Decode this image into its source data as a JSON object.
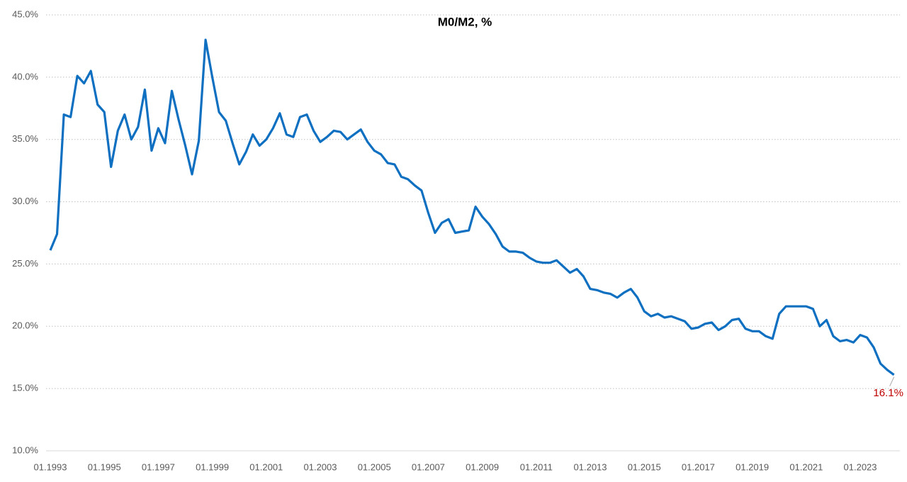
{
  "chart_data": {
    "type": "line",
    "title": "M0/M2, %",
    "x": [
      "01.1993",
      "04.1993",
      "07.1993",
      "10.1993",
      "01.1994",
      "04.1994",
      "07.1994",
      "10.1994",
      "01.1995",
      "04.1995",
      "07.1995",
      "10.1995",
      "01.1996",
      "04.1996",
      "07.1996",
      "10.1996",
      "01.1997",
      "04.1997",
      "07.1997",
      "10.1997",
      "01.1998",
      "04.1998",
      "07.1998",
      "10.1998",
      "01.1999",
      "04.1999",
      "07.1999",
      "10.1999",
      "01.2000",
      "04.2000",
      "07.2000",
      "10.2000",
      "01.2001",
      "04.2001",
      "07.2001",
      "10.2001",
      "01.2002",
      "04.2002",
      "07.2002",
      "10.2002",
      "01.2003",
      "04.2003",
      "07.2003",
      "10.2003",
      "01.2004",
      "04.2004",
      "07.2004",
      "10.2004",
      "01.2005",
      "04.2005",
      "07.2005",
      "10.2005",
      "01.2006",
      "04.2006",
      "07.2006",
      "10.2006",
      "01.2007",
      "04.2007",
      "07.2007",
      "10.2007",
      "01.2008",
      "04.2008",
      "07.2008",
      "10.2008",
      "01.2009",
      "04.2009",
      "07.2009",
      "10.2009",
      "01.2010",
      "04.2010",
      "07.2010",
      "10.2010",
      "01.2011",
      "04.2011",
      "07.2011",
      "10.2011",
      "01.2012",
      "04.2012",
      "07.2012",
      "10.2012",
      "01.2013",
      "04.2013",
      "07.2013",
      "10.2013",
      "01.2014",
      "04.2014",
      "07.2014",
      "10.2014",
      "01.2015",
      "04.2015",
      "07.2015",
      "10.2015",
      "01.2016",
      "04.2016",
      "07.2016",
      "10.2016",
      "01.2017",
      "04.2017",
      "07.2017",
      "10.2017",
      "01.2018",
      "04.2018",
      "07.2018",
      "10.2018",
      "01.2019",
      "04.2019",
      "07.2019",
      "10.2019",
      "01.2020",
      "04.2020",
      "07.2020",
      "10.2020",
      "01.2021",
      "04.2021",
      "07.2021",
      "10.2021",
      "01.2022",
      "04.2022",
      "07.2022",
      "10.2022",
      "01.2023",
      "04.2023",
      "07.2023",
      "10.2023",
      "01.2024",
      "04.2024"
    ],
    "series": [
      {
        "color": "#0f6fc0",
        "values": [
          26.1,
          27.4,
          37.0,
          36.8,
          40.1,
          39.5,
          40.5,
          37.8,
          37.2,
          32.8,
          35.7,
          37.0,
          35.0,
          36.0,
          39.0,
          34.1,
          35.9,
          34.7,
          38.9,
          36.6,
          34.5,
          32.2,
          34.9,
          43.0,
          40.0,
          37.2,
          36.5,
          34.7,
          33.0,
          34.0,
          35.4,
          34.5,
          35.0,
          35.9,
          37.1,
          35.4,
          35.2,
          36.8,
          37.0,
          35.7,
          34.8,
          35.2,
          35.7,
          35.6,
          35.0,
          35.4,
          35.8,
          34.8,
          34.1,
          33.8,
          33.1,
          33.0,
          32.0,
          31.8,
          31.3,
          30.9,
          29.1,
          27.5,
          28.3,
          28.6,
          27.5,
          27.6,
          27.7,
          29.6,
          28.8,
          28.2,
          27.4,
          26.4,
          26.0,
          26.0,
          25.9,
          25.5,
          25.2,
          25.1,
          25.1,
          25.3,
          24.8,
          24.3,
          24.6,
          24.0,
          23.0,
          22.9,
          22.7,
          22.6,
          22.3,
          22.7,
          23.0,
          22.3,
          21.2,
          20.8,
          21.0,
          20.7,
          20.8,
          20.6,
          20.4,
          19.8,
          19.9,
          20.2,
          20.3,
          19.7,
          20.0,
          20.5,
          20.6,
          19.8,
          19.6,
          19.6,
          19.2,
          19.0,
          21.0,
          21.6,
          21.6,
          21.6,
          21.6,
          21.4,
          20.0,
          20.5,
          19.2,
          18.8,
          18.9,
          18.7,
          19.3,
          19.1,
          18.3,
          17.0,
          16.5,
          16.1
        ]
      }
    ],
    "annotations": [
      {
        "x": "04.2024",
        "y": 16.1,
        "label": "16.1%",
        "color": "#c00000"
      }
    ],
    "xlim": [
      "01.1993",
      "06.2024"
    ],
    "xticks": [
      "01.1993",
      "01.1995",
      "01.1997",
      "01.1999",
      "01.2001",
      "01.2003",
      "01.2005",
      "01.2007",
      "01.2009",
      "01.2011",
      "01.2013",
      "01.2015",
      "01.2017",
      "01.2019",
      "01.2021",
      "01.2023"
    ],
    "ylim": [
      10,
      45
    ],
    "yticks": [
      {
        "value": 10,
        "label": "10.0%"
      },
      {
        "value": 15,
        "label": "15.0%"
      },
      {
        "value": 20,
        "label": "20.0%"
      },
      {
        "value": 25,
        "label": "25.0%"
      },
      {
        "value": 30,
        "label": "30.0%"
      },
      {
        "value": 35,
        "label": "35.0%"
      },
      {
        "value": 40,
        "label": "40.0%"
      },
      {
        "value": 45,
        "label": "45.0%"
      }
    ],
    "grid": true
  }
}
